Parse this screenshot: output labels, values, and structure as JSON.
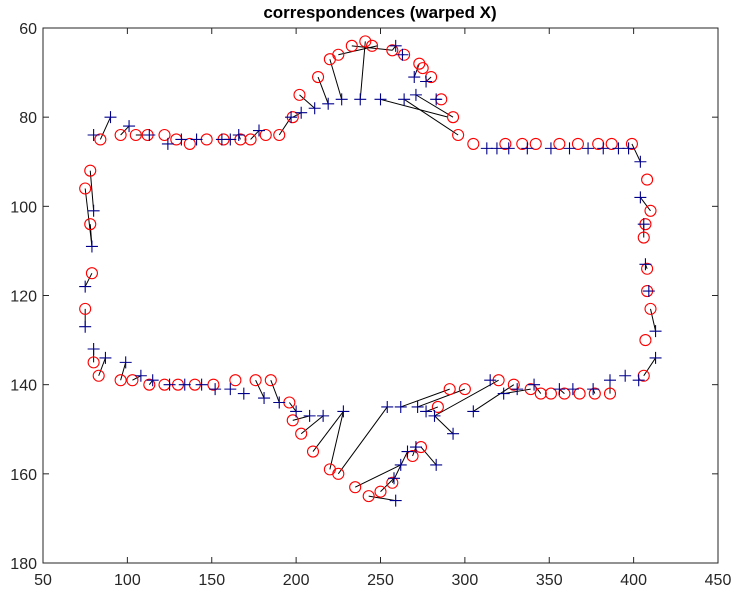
{
  "chart_data": {
    "type": "scatter",
    "title": "correspondences (warped X)",
    "xlabel": "",
    "ylabel": "",
    "xlim": [
      50,
      450
    ],
    "ylim": [
      60,
      180
    ],
    "y_axis_reversed": true,
    "grid": false,
    "legend": "none",
    "xticks": [
      "50",
      "100",
      "150",
      "200",
      "250",
      "300",
      "350",
      "400",
      "450"
    ],
    "yticks": [
      "60",
      "80",
      "100",
      "120",
      "140",
      "160",
      "180"
    ],
    "colors": {
      "circles": "#ff0000",
      "plus": "#00008b",
      "lines": "#000000",
      "axes": "#262626"
    },
    "series": [
      {
        "marker": "circle",
        "points": [
          [
            245,
            64
          ],
          [
            241,
            63
          ],
          [
            233,
            64
          ],
          [
            225,
            66
          ],
          [
            220,
            67
          ],
          [
            213,
            71
          ],
          [
            202,
            75
          ],
          [
            198,
            80
          ],
          [
            190,
            84
          ],
          [
            182,
            84
          ],
          [
            173,
            85
          ],
          [
            167,
            85
          ],
          [
            157,
            85
          ],
          [
            147,
            85
          ],
          [
            137,
            86
          ],
          [
            129,
            85
          ],
          [
            122,
            84
          ],
          [
            112,
            84
          ],
          [
            105,
            84
          ],
          [
            96,
            84
          ],
          [
            84,
            85
          ],
          [
            78,
            92
          ],
          [
            75,
            96
          ],
          [
            78,
            104
          ],
          [
            79,
            115
          ],
          [
            75,
            123
          ],
          [
            80,
            135
          ],
          [
            83,
            138
          ],
          [
            96,
            139
          ],
          [
            103,
            139
          ],
          [
            113,
            140
          ],
          [
            122,
            140
          ],
          [
            130,
            140
          ],
          [
            140,
            140
          ],
          [
            151,
            140
          ],
          [
            164,
            139
          ],
          [
            176,
            139
          ],
          [
            185,
            139
          ],
          [
            196,
            144
          ],
          [
            198,
            148
          ],
          [
            203,
            151
          ],
          [
            210,
            155
          ],
          [
            220,
            159
          ],
          [
            225,
            160
          ],
          [
            235,
            163
          ],
          [
            243,
            165
          ],
          [
            250,
            164
          ],
          [
            257,
            162
          ],
          [
            269,
            156
          ],
          [
            274,
            154
          ],
          [
            284,
            145
          ],
          [
            291,
            141
          ],
          [
            300,
            141
          ],
          [
            320,
            139
          ],
          [
            329,
            140
          ],
          [
            339,
            141
          ],
          [
            345,
            142
          ],
          [
            351,
            142
          ],
          [
            359,
            142
          ],
          [
            368,
            142
          ],
          [
            377,
            142
          ],
          [
            386,
            142
          ],
          [
            406,
            138
          ],
          [
            407,
            130
          ],
          [
            410,
            123
          ],
          [
            408,
            119
          ],
          [
            408,
            114
          ],
          [
            406,
            107
          ],
          [
            407,
            104
          ],
          [
            410,
            101
          ],
          [
            408,
            94
          ],
          [
            399,
            86
          ],
          [
            387,
            86
          ],
          [
            379,
            86
          ],
          [
            367,
            86
          ],
          [
            356,
            86
          ],
          [
            342,
            86
          ],
          [
            334,
            86
          ],
          [
            324,
            86
          ],
          [
            305,
            86
          ],
          [
            296,
            84
          ],
          [
            293,
            80
          ],
          [
            286,
            76
          ],
          [
            280,
            71
          ],
          [
            275,
            69
          ],
          [
            273,
            68
          ],
          [
            264,
            66
          ],
          [
            257,
            65
          ]
        ]
      },
      {
        "marker": "plus",
        "points": [
          [
            259,
            64
          ],
          [
            263,
            66
          ],
          [
            270,
            71
          ],
          [
            277,
            72
          ],
          [
            283,
            76
          ],
          [
            271,
            75
          ],
          [
            264,
            76
          ],
          [
            250,
            76
          ],
          [
            238,
            76
          ],
          [
            227,
            76
          ],
          [
            219,
            77
          ],
          [
            211,
            78
          ],
          [
            203,
            79
          ],
          [
            197,
            80
          ],
          [
            178,
            83
          ],
          [
            166,
            84
          ],
          [
            161,
            85
          ],
          [
            156,
            85
          ],
          [
            141,
            85
          ],
          [
            132,
            85
          ],
          [
            124,
            86
          ],
          [
            113,
            84
          ],
          [
            101,
            82
          ],
          [
            90,
            80
          ],
          [
            80,
            84
          ],
          [
            80,
            101
          ],
          [
            79,
            109
          ],
          [
            75,
            118
          ],
          [
            75,
            127
          ],
          [
            80,
            132
          ],
          [
            87,
            134
          ],
          [
            99,
            135
          ],
          [
            108,
            138
          ],
          [
            115,
            139
          ],
          [
            125,
            140
          ],
          [
            134,
            140
          ],
          [
            144,
            140
          ],
          [
            152,
            141
          ],
          [
            161,
            141
          ],
          [
            169,
            142
          ],
          [
            181,
            143
          ],
          [
            190,
            144
          ],
          [
            200,
            146
          ],
          [
            208,
            147
          ],
          [
            216,
            147
          ],
          [
            228,
            146
          ],
          [
            254,
            145
          ],
          [
            262,
            145
          ],
          [
            272,
            145
          ],
          [
            277,
            146
          ],
          [
            282,
            147
          ],
          [
            293,
            151
          ],
          [
            283,
            158
          ],
          [
            271,
            154
          ],
          [
            266,
            155
          ],
          [
            262,
            158
          ],
          [
            258,
            161
          ],
          [
            259,
            166
          ],
          [
            305,
            146
          ],
          [
            315,
            139
          ],
          [
            323,
            142
          ],
          [
            331,
            141
          ],
          [
            341,
            140
          ],
          [
            356,
            141
          ],
          [
            364,
            141
          ],
          [
            376,
            141
          ],
          [
            386,
            139
          ],
          [
            395,
            138
          ],
          [
            403,
            139
          ],
          [
            413,
            134
          ],
          [
            413,
            128
          ],
          [
            409,
            119
          ],
          [
            407,
            113
          ],
          [
            406,
            104
          ],
          [
            404,
            98
          ],
          [
            404,
            90
          ],
          [
            397,
            87
          ],
          [
            391,
            87
          ],
          [
            382,
            87
          ],
          [
            373,
            87
          ],
          [
            362,
            87
          ],
          [
            351,
            87
          ],
          [
            337,
            87
          ],
          [
            326,
            87
          ],
          [
            319,
            87
          ],
          [
            313,
            87
          ]
        ]
      }
    ],
    "correspondence_lines": [
      [
        241,
        63,
        238,
        76
      ],
      [
        233,
        64,
        257,
        65
      ],
      [
        225,
        66,
        248,
        64
      ],
      [
        220,
        67,
        227,
        76
      ],
      [
        213,
        71,
        219,
        77
      ],
      [
        202,
        75,
        211,
        78
      ],
      [
        198,
        80,
        203,
        79
      ],
      [
        190,
        84,
        197,
        80
      ],
      [
        257,
        65,
        259,
        64
      ],
      [
        264,
        66,
        263,
        66
      ],
      [
        273,
        68,
        270,
        71
      ],
      [
        280,
        71,
        277,
        72
      ],
      [
        286,
        76,
        283,
        76
      ],
      [
        293,
        80,
        271,
        75
      ],
      [
        296,
        84,
        264,
        76
      ],
      [
        290,
        80,
        250,
        76
      ],
      [
        196,
        144,
        200,
        146
      ],
      [
        198,
        148,
        208,
        147
      ],
      [
        203,
        151,
        216,
        147
      ],
      [
        210,
        155,
        228,
        146
      ],
      [
        220,
        159,
        228,
        146
      ],
      [
        225,
        160,
        254,
        145
      ],
      [
        235,
        163,
        262,
        158
      ],
      [
        243,
        165,
        259,
        166
      ],
      [
        250,
        164,
        258,
        161
      ],
      [
        257,
        162,
        266,
        155
      ],
      [
        269,
        156,
        271,
        154
      ],
      [
        274,
        154,
        283,
        158
      ],
      [
        284,
        145,
        277,
        146
      ],
      [
        291,
        141,
        262,
        145
      ],
      [
        300,
        141,
        272,
        145
      ],
      [
        320,
        139,
        282,
        147
      ],
      [
        329,
        140,
        305,
        146
      ],
      [
        339,
        141,
        323,
        142
      ],
      [
        282,
        147,
        293,
        151
      ],
      [
        406,
        138,
        413,
        134
      ],
      [
        410,
        123,
        413,
        128
      ],
      [
        408,
        114,
        407,
        113
      ],
      [
        406,
        107,
        406,
        104
      ],
      [
        410,
        101,
        404,
        98
      ],
      [
        399,
        86,
        404,
        90
      ],
      [
        78,
        92,
        80,
        101
      ],
      [
        75,
        96,
        79,
        109
      ],
      [
        78,
        104,
        79,
        109
      ],
      [
        79,
        115,
        75,
        118
      ],
      [
        75,
        123,
        75,
        127
      ],
      [
        80,
        135,
        80,
        132
      ],
      [
        83,
        138,
        87,
        134
      ],
      [
        96,
        139,
        99,
        135
      ],
      [
        103,
        139,
        108,
        138
      ],
      [
        113,
        140,
        115,
        139
      ],
      [
        176,
        139,
        181,
        143
      ],
      [
        185,
        139,
        190,
        144
      ],
      [
        84,
        85,
        90,
        80
      ],
      [
        96,
        84,
        101,
        82
      ],
      [
        105,
        84,
        113,
        84
      ],
      [
        167,
        85,
        166,
        84
      ],
      [
        173,
        85,
        178,
        83
      ],
      [
        386,
        142,
        386,
        139
      ],
      [
        377,
        142,
        376,
        141
      ],
      [
        345,
        142,
        341,
        140
      ],
      [
        359,
        142,
        356,
        141
      ]
    ]
  }
}
